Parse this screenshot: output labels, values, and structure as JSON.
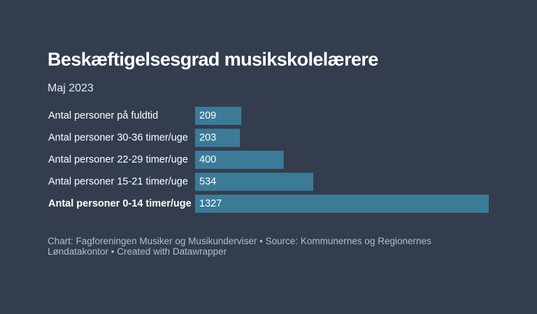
{
  "title": "Beskæftigelsesgrad musikskolelærere",
  "subtitle": "Maj 2023",
  "footer": "Chart: Fagforeningen Musiker og Musikunderviser • Source: Kommunernes og Regionernes Løndatakontor • Created with Datawrapper",
  "colors": {
    "background": "#333d4d",
    "bar": "#3b7b97",
    "text": "#ffffff"
  },
  "chart_data": {
    "type": "bar",
    "orientation": "horizontal",
    "categories": [
      "Antal personer på fuldtid",
      "Antal personer 30-36 timer/uge",
      "Antal personer 22-29 timer/uge",
      "Antal personer 15-21 timer/uge",
      "Antal personer 0-14 timer/uge"
    ],
    "values": [
      209,
      203,
      400,
      534,
      1327
    ],
    "highlighted_category": "Antal personer 0-14 timer/uge",
    "title": "Beskæftigelsesgrad musikskolelærere",
    "subtitle": "Maj 2023",
    "grid": false,
    "data_labels": true
  }
}
